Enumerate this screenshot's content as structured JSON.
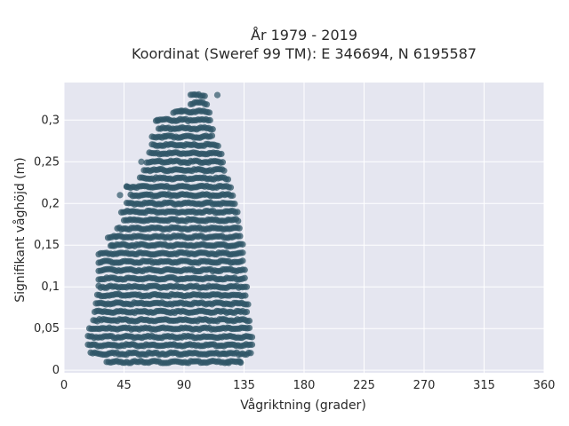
{
  "chart_data": {
    "type": "scatter",
    "title_line1": "År 1979 - 2019",
    "title_line2": "Koordinat (Sweref 99 TM): E 346694, N 6195587",
    "xlabel": "Vågriktning (grader)",
    "ylabel": "Signifikant våghöjd (m)",
    "xlim": [
      0,
      360
    ],
    "ylim": [
      -0.003,
      0.345
    ],
    "xticks": [
      0,
      45,
      90,
      135,
      180,
      225,
      270,
      315,
      360
    ],
    "xtick_labels": [
      "0",
      "45",
      "90",
      "135",
      "180",
      "225",
      "270",
      "315",
      "360"
    ],
    "yticks": [
      0,
      0.05,
      0.1,
      0.15,
      0.2,
      0.25,
      0.3
    ],
    "ytick_labels": [
      "0",
      "0,05",
      "0,1",
      "0,15",
      "0,2",
      "0,25",
      "0,3"
    ],
    "grid": true,
    "marker_color": "#2f5567",
    "background_color": "#e5e6f0",
    "y_step": 0.01,
    "bands": [
      {
        "y": 0.01,
        "x_min": 32,
        "x_max": 133
      },
      {
        "y": 0.02,
        "x_min": 20,
        "x_max": 140
      },
      {
        "y": 0.03,
        "x_min": 18,
        "x_max": 141
      },
      {
        "y": 0.04,
        "x_min": 18,
        "x_max": 141
      },
      {
        "y": 0.05,
        "x_min": 19,
        "x_max": 140
      },
      {
        "y": 0.06,
        "x_min": 22,
        "x_max": 139
      },
      {
        "y": 0.07,
        "x_min": 23,
        "x_max": 138
      },
      {
        "y": 0.08,
        "x_min": 24,
        "x_max": 138
      },
      {
        "y": 0.09,
        "x_min": 25,
        "x_max": 137
      },
      {
        "y": 0.1,
        "x_min": 26,
        "x_max": 137
      },
      {
        "y": 0.11,
        "x_min": 26,
        "x_max": 136
      },
      {
        "y": 0.12,
        "x_min": 26,
        "x_max": 136
      },
      {
        "y": 0.13,
        "x_min": 26,
        "x_max": 135
      },
      {
        "y": 0.14,
        "x_min": 26,
        "x_max": 135
      },
      {
        "y": 0.15,
        "x_min": 35,
        "x_max": 134
      },
      {
        "y": 0.16,
        "x_min": 33,
        "x_max": 133
      },
      {
        "y": 0.17,
        "x_min": 40,
        "x_max": 132
      },
      {
        "y": 0.18,
        "x_min": 45,
        "x_max": 131
      },
      {
        "y": 0.19,
        "x_min": 43,
        "x_max": 130
      },
      {
        "y": 0.2,
        "x_min": 47,
        "x_max": 129
      },
      {
        "y": 0.21,
        "x_min": 50,
        "x_max": 127
      },
      {
        "y": 0.22,
        "x_min": 47,
        "x_max": 125
      },
      {
        "y": 0.23,
        "x_min": 57,
        "x_max": 123
      },
      {
        "y": 0.24,
        "x_min": 60,
        "x_max": 121
      },
      {
        "y": 0.25,
        "x_min": 62,
        "x_max": 120
      },
      {
        "y": 0.26,
        "x_min": 64,
        "x_max": 118
      },
      {
        "y": 0.27,
        "x_min": 66,
        "x_max": 116
      },
      {
        "y": 0.28,
        "x_min": 66,
        "x_max": 112
      },
      {
        "y": 0.29,
        "x_min": 71,
        "x_max": 112
      },
      {
        "y": 0.3,
        "x_min": 69,
        "x_max": 110
      },
      {
        "y": 0.31,
        "x_min": 82,
        "x_max": 110
      },
      {
        "y": 0.32,
        "x_min": 95,
        "x_max": 108
      },
      {
        "y": 0.33,
        "x_min": 95,
        "x_max": 106
      }
    ],
    "outliers": [
      {
        "x": 47,
        "y": 0.22
      },
      {
        "x": 42,
        "y": 0.21
      },
      {
        "x": 39,
        "y": 0.16
      },
      {
        "x": 36,
        "y": 0.15
      },
      {
        "x": 70,
        "y": 0.3
      },
      {
        "x": 88,
        "y": 0.31
      },
      {
        "x": 58,
        "y": 0.25
      },
      {
        "x": 115,
        "y": 0.33
      },
      {
        "x": 123,
        "y": 0.01
      },
      {
        "x": 132,
        "y": 0.01
      },
      {
        "x": 120,
        "y": 0.02
      },
      {
        "x": 76,
        "y": 0.28
      }
    ]
  }
}
